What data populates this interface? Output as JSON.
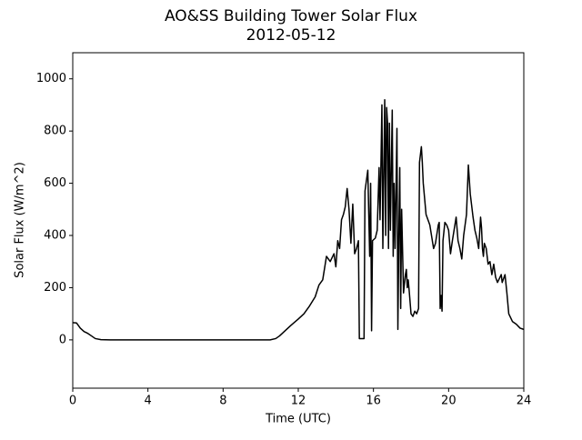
{
  "chart_data": {
    "type": "line",
    "title": "AO&SS Building Tower Solar Flux",
    "subtitle": "2012-05-12",
    "xlabel": "Time (UTC)",
    "ylabel": "Solar Flux (W/m^2)",
    "xlim": [
      0,
      24
    ],
    "ylim": [
      -185,
      1100
    ],
    "xticks": [
      0,
      4,
      8,
      12,
      16,
      20,
      24
    ],
    "yticks": [
      0,
      200,
      400,
      600,
      800,
      1000
    ],
    "grid": false,
    "series": [
      {
        "color": "#000000",
        "x": [
          0,
          0.2,
          0.4,
          0.6,
          0.8,
          1.0,
          1.2,
          1.5,
          2,
          10.5,
          10.8,
          11,
          11.3,
          11.6,
          12,
          12.3,
          12.6,
          12.9,
          13.1,
          13.3,
          13.5,
          13.7,
          13.9,
          14.0,
          14.1,
          14.2,
          14.3,
          14.4,
          14.5,
          14.6,
          14.7,
          14.8,
          14.9,
          15.0,
          15.1,
          15.2,
          15.25,
          15.5,
          15.55,
          15.7,
          15.8,
          15.85,
          15.9,
          15.95,
          16.1,
          16.2,
          16.3,
          16.35,
          16.45,
          16.5,
          16.6,
          16.65,
          16.7,
          16.75,
          16.8,
          16.85,
          16.9,
          17.0,
          17.05,
          17.1,
          17.15,
          17.2,
          17.25,
          17.3,
          17.35,
          17.4,
          17.45,
          17.5,
          17.6,
          17.7,
          17.75,
          17.8,
          17.85,
          17.9,
          18.0,
          18.1,
          18.2,
          18.3,
          18.4,
          18.45,
          18.55,
          18.6,
          18.65,
          18.8,
          19.0,
          19.2,
          19.3,
          19.45,
          19.5,
          19.55,
          19.6,
          19.65,
          19.7,
          19.8,
          19.9,
          20.0,
          20.1,
          20.2,
          20.4,
          20.5,
          20.6,
          20.7,
          20.8,
          20.95,
          21.05,
          21.15,
          21.3,
          21.4,
          21.5,
          21.6,
          21.7,
          21.75,
          21.8,
          21.85,
          21.9,
          22.0,
          22.1,
          22.2,
          22.3,
          22.4,
          22.5,
          22.6,
          22.8,
          22.85,
          22.9,
          23.0,
          23.1,
          23.2,
          23.4,
          23.6,
          23.8,
          24
        ],
        "values": [
          66,
          65,
          45,
          32,
          25,
          15,
          5,
          1,
          0,
          0,
          5,
          15,
          35,
          55,
          80,
          100,
          130,
          165,
          210,
          230,
          320,
          300,
          330,
          280,
          380,
          350,
          460,
          480,
          510,
          580,
          500,
          370,
          520,
          330,
          350,
          380,
          5,
          5,
          570,
          650,
          320,
          600,
          35,
          380,
          390,
          420,
          660,
          460,
          900,
          350,
          920,
          400,
          890,
          830,
          350,
          830,
          420,
          880,
          320,
          600,
          350,
          570,
          810,
          40,
          400,
          660,
          120,
          500,
          180,
          250,
          270,
          200,
          230,
          190,
          100,
          90,
          110,
          100,
          120,
          680,
          740,
          680,
          600,
          480,
          440,
          350,
          370,
          440,
          450,
          120,
          170,
          110,
          380,
          450,
          440,
          420,
          330,
          380,
          470,
          380,
          350,
          310,
          400,
          480,
          670,
          560,
          470,
          420,
          390,
          350,
          470,
          430,
          350,
          320,
          370,
          350,
          290,
          300,
          250,
          290,
          240,
          220,
          250,
          220,
          230,
          250,
          180,
          100,
          70,
          60,
          45,
          40
        ]
      }
    ]
  }
}
